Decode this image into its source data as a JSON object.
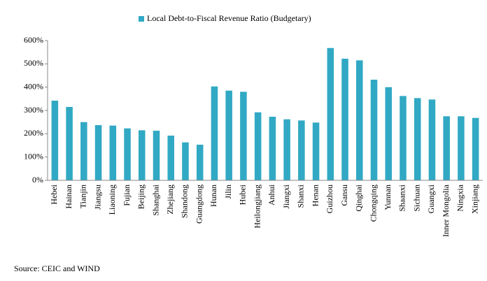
{
  "chart_data": {
    "type": "bar",
    "legend_position": "top",
    "categories": [
      "Hebei",
      "Hainan",
      "Tianjin",
      "Jiangsu",
      "Liaoning",
      "Fujian",
      "Beijing",
      "Shanghai",
      "Zhejiang",
      "Shandong",
      "Guangdong",
      "Hunan",
      "Jilin",
      "Hubei",
      "Heilongjiang",
      "Anhui",
      "Jiangxi",
      "Shanxi",
      "Henan",
      "Guizhou",
      "Gansu",
      "Qinghai",
      "Chongqing",
      "Yunnan",
      "Shaanxi",
      "Sichuan",
      "Guangxi",
      "Inner Mongolia",
      "Ningxia",
      "Xinjiang"
    ],
    "series": [
      {
        "name": "Local Debt-to-Fiscal Revenue Ratio (Budgetary)",
        "color": "#31a9c4",
        "values": [
          342,
          315,
          250,
          237,
          235,
          223,
          215,
          213,
          192,
          163,
          153,
          403,
          385,
          380,
          292,
          273,
          262,
          257,
          248,
          568,
          522,
          515,
          432,
          400,
          362,
          353,
          347,
          275,
          275,
          268
        ]
      }
    ],
    "ylim": [
      0,
      600
    ],
    "yticks": [
      {
        "value": 0,
        "label": "0%"
      },
      {
        "value": 100,
        "label": "100%"
      },
      {
        "value": 200,
        "label": "200%"
      },
      {
        "value": 300,
        "label": "300%"
      },
      {
        "value": 400,
        "label": "400%"
      },
      {
        "value": 500,
        "label": "500%"
      },
      {
        "value": 600,
        "label": "600%"
      }
    ],
    "source": "Source: CEIC and WIND"
  }
}
